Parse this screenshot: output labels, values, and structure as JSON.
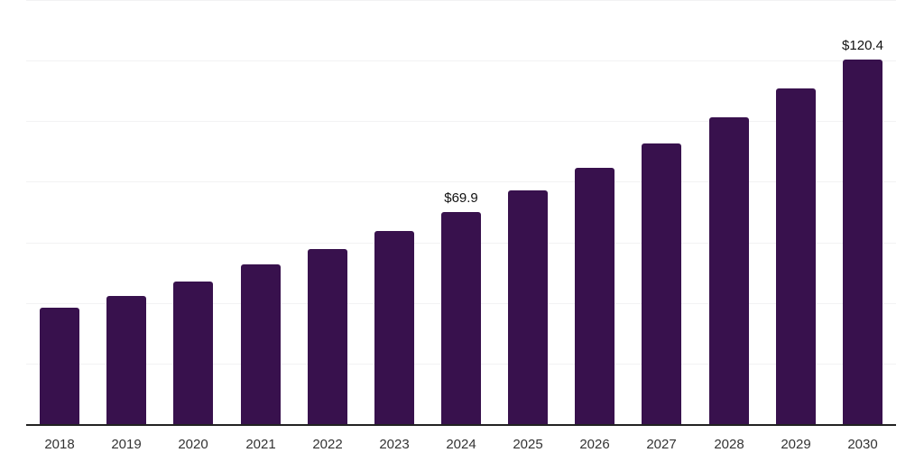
{
  "chart_data": {
    "type": "bar",
    "title": "",
    "xlabel": "",
    "ylabel": "",
    "categories": [
      "2018",
      "2019",
      "2020",
      "2021",
      "2022",
      "2023",
      "2024",
      "2025",
      "2026",
      "2027",
      "2028",
      "2029",
      "2030"
    ],
    "values": [
      38.3,
      42.3,
      47.2,
      52.6,
      57.7,
      63.6,
      69.9,
      77.0,
      84.7,
      92.7,
      101.3,
      110.8,
      120.4
    ],
    "data_labels": [
      {
        "category": "2024",
        "text": "$69.9"
      },
      {
        "category": "2030",
        "text": "$120.4"
      }
    ],
    "ylim": [
      0,
      140
    ],
    "gridline_step": 20,
    "grid": true,
    "legend": "none",
    "y_axis_tick_labels_visible": false,
    "colors": {
      "bar": "#38114d",
      "axis_line": "#222222",
      "gridline": "#f2f2f3",
      "data_label": "#111111",
      "tick_label": "#333333",
      "background": "#ffffff"
    }
  }
}
